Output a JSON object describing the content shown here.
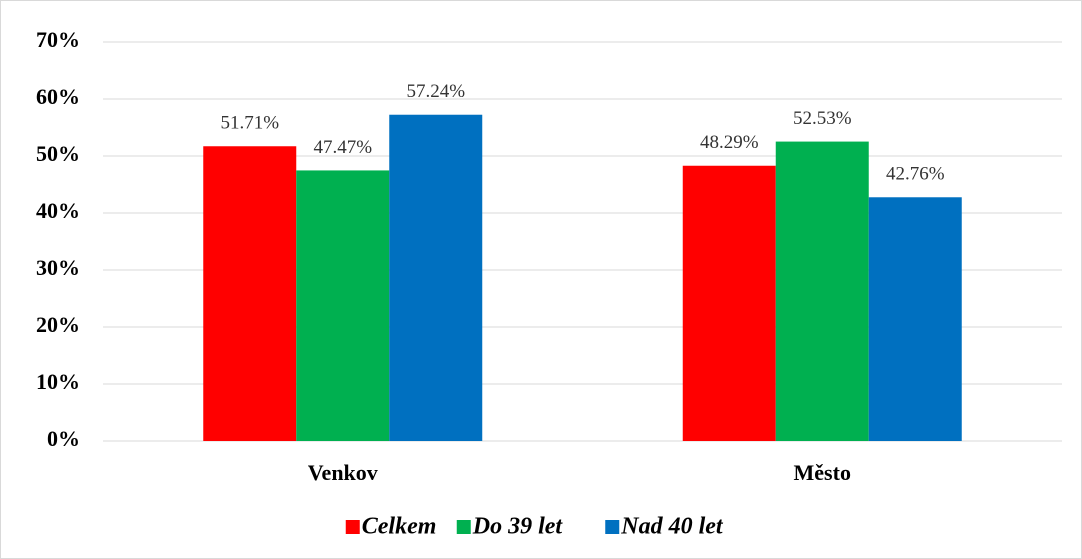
{
  "chart_data": {
    "type": "bar",
    "categories": [
      "Venkov",
      "Město"
    ],
    "series": [
      {
        "name": "Celkem",
        "color": "#ff0000",
        "values": [
          51.71,
          48.29
        ],
        "value_labels": [
          "51.71%",
          "48.29%"
        ]
      },
      {
        "name": "Do 39 let",
        "color": "#00b050",
        "values": [
          47.47,
          52.53
        ],
        "value_labels": [
          "47.47%",
          "52.53%"
        ]
      },
      {
        "name": "Nad 40 let",
        "color": "#0070c0",
        "values": [
          57.24,
          42.76
        ],
        "value_labels": [
          "57.24%",
          "42.76%"
        ]
      }
    ],
    "ylim": [
      0,
      70
    ],
    "yticks": [
      {
        "value": 0,
        "label": "0%"
      },
      {
        "value": 10,
        "label": "10%"
      },
      {
        "value": 20,
        "label": "20%"
      },
      {
        "value": 30,
        "label": "30%"
      },
      {
        "value": 40,
        "label": "40%"
      },
      {
        "value": 50,
        "label": "50%"
      },
      {
        "value": 60,
        "label": "60%"
      },
      {
        "value": 70,
        "label": "70%"
      }
    ],
    "grid": true,
    "legend": "bottom"
  }
}
